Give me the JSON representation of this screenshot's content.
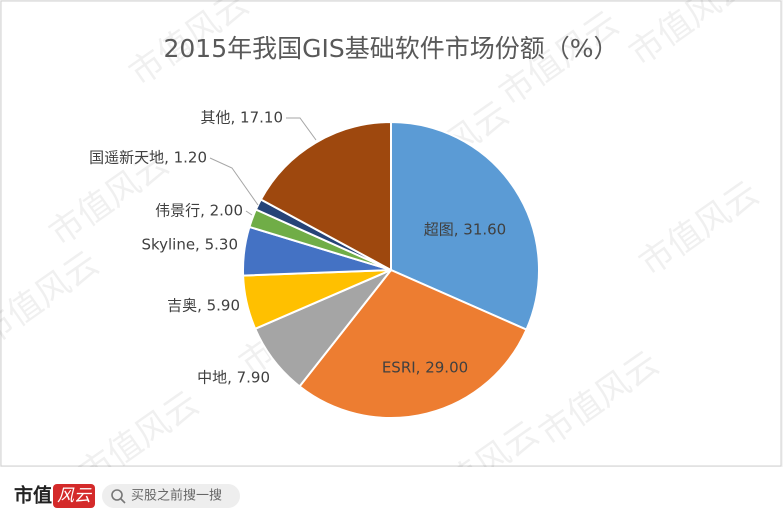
{
  "chart_data": {
    "type": "pie",
    "title": "2015年我国GIS基础软件市场份额（%）",
    "values": [
      31.6,
      29.0,
      7.9,
      5.9,
      5.3,
      2.0,
      1.2,
      17.1
    ],
    "value_labels": [
      "超图, 31.60",
      "ESRI, 29.00",
      "中地, 7.90",
      "吉奥, 5.90",
      "Skyline, 5.30",
      "伟景行, 2.00",
      "国遥新天地, 1.20",
      "其他, 17.10"
    ],
    "colors": [
      "#5b9bd5",
      "#ed7d31",
      "#a5a5a5",
      "#ffc000",
      "#4472c4",
      "#70ad47",
      "#264478",
      "#9e480e"
    ]
  },
  "watermark": "市值风云",
  "footer": {
    "logo_left": "市值",
    "logo_right": "风云",
    "search": "买股之前搜一搜"
  }
}
